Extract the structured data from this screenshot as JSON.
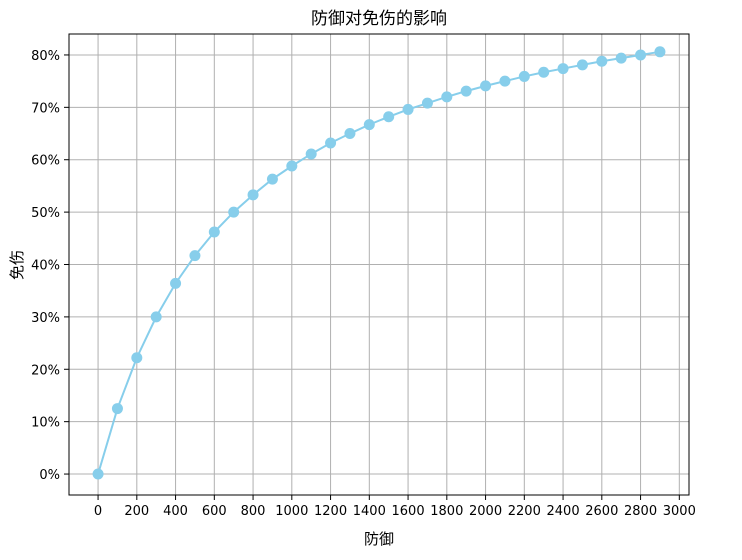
{
  "chart_data": {
    "type": "line",
    "title": "防御对免伤的影响",
    "xlabel": "防御",
    "ylabel": "免伤",
    "xlim": [
      -150,
      3050
    ],
    "ylim": [
      -0.04,
      0.84
    ],
    "grid": true,
    "x_ticks": [
      0,
      200,
      400,
      600,
      800,
      1000,
      1200,
      1400,
      1600,
      1800,
      2000,
      2200,
      2400,
      2600,
      2800,
      3000
    ],
    "x_tick_labels": [
      "0",
      "200",
      "400",
      "600",
      "800",
      "1000",
      "1200",
      "1400",
      "1600",
      "1800",
      "2000",
      "2200",
      "2400",
      "2600",
      "2800",
      "3000"
    ],
    "y_ticks": [
      0,
      0.1,
      0.2,
      0.3,
      0.4,
      0.5,
      0.6,
      0.7,
      0.8
    ],
    "y_tick_labels": [
      "0%",
      "10%",
      "20%",
      "30%",
      "40%",
      "50%",
      "60%",
      "70%",
      "80%"
    ],
    "series": [
      {
        "color": "#87ceeb",
        "marker": "circle",
        "x": [
          0,
          100,
          200,
          300,
          400,
          500,
          600,
          700,
          800,
          900,
          1000,
          1100,
          1200,
          1300,
          1400,
          1500,
          1600,
          1700,
          1800,
          1900,
          2000,
          2100,
          2200,
          2300,
          2400,
          2500,
          2600,
          2700,
          2800,
          2900
        ],
        "values": [
          0.0,
          0.125,
          0.222,
          0.3,
          0.364,
          0.417,
          0.462,
          0.5,
          0.533,
          0.563,
          0.588,
          0.611,
          0.632,
          0.65,
          0.667,
          0.682,
          0.696,
          0.708,
          0.72,
          0.731,
          0.741,
          0.75,
          0.759,
          0.767,
          0.774,
          0.781,
          0.788,
          0.794,
          0.8,
          0.806
        ]
      }
    ]
  }
}
